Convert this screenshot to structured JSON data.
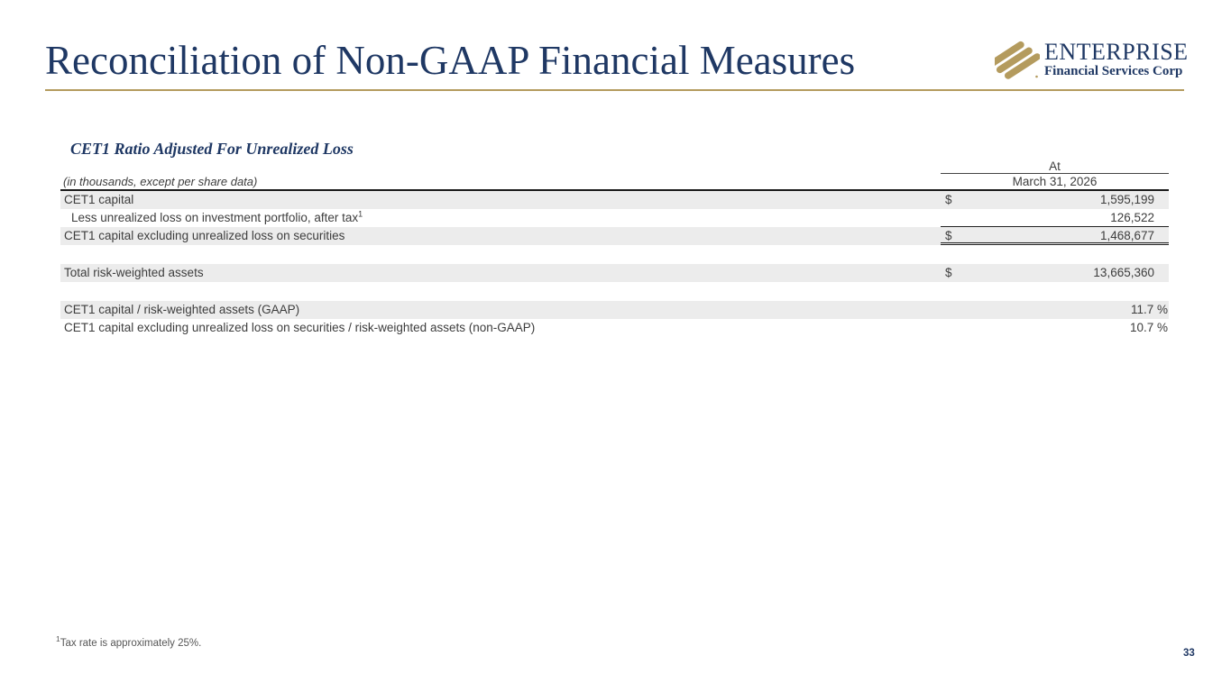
{
  "slide": {
    "title": "Reconciliation of Non-GAAP Financial Measures",
    "page_number": "33",
    "footnote": {
      "sup": "1",
      "text": "Tax rate is approximately 25%."
    }
  },
  "logo": {
    "company": "ENTERPRISE",
    "tagline": "Financial Services Corp"
  },
  "table": {
    "heading": "CET1 Ratio Adjusted For Unrealized Loss",
    "units_note": "(in thousands, except per share data)",
    "column_header": {
      "period_label": "At",
      "date": "March 31, 2026"
    },
    "rows": [
      {
        "label": "CET1 capital",
        "currency": "$",
        "value": "1,595,199",
        "shaded": true
      },
      {
        "label": "Less unrealized loss on investment portfolio, after tax",
        "sup": "1",
        "currency": "",
        "value": "126,522",
        "indent": true,
        "underline": "single"
      },
      {
        "label": "CET1 capital excluding unrealized loss on securities",
        "currency": "$",
        "value": "1,468,677",
        "shaded": true,
        "underline": "double"
      },
      {
        "spacer": true
      },
      {
        "label": "Total risk-weighted assets",
        "currency": "$",
        "value": "13,665,360",
        "shaded": true
      },
      {
        "spacer": true
      },
      {
        "label": "CET1 capital / risk-weighted assets (GAAP)",
        "currency": "",
        "value": "11.7 %",
        "shaded": true,
        "pct": true
      },
      {
        "label": "CET1 capital excluding unrealized loss on securities / risk-weighted assets (non-GAAP)",
        "currency": "",
        "value": "10.7 %",
        "pct": true
      }
    ]
  },
  "colors": {
    "navy": "#1f3864",
    "gold": "#b49b5e",
    "row_shade": "#ececec",
    "text": "#3d3d3d",
    "line": "#1a1a1a"
  }
}
